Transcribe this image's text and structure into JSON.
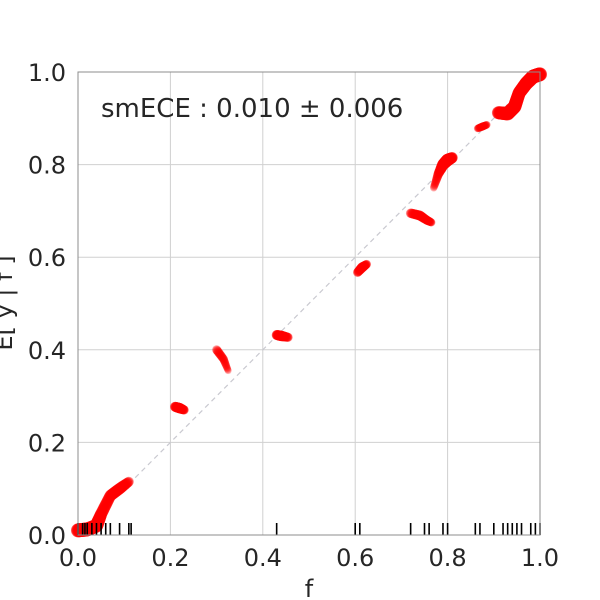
{
  "chart_data": {
    "type": "line",
    "title": "",
    "annotation": "smECE : 0.010 ± 0.006",
    "xlabel": "f",
    "ylabel": "E[ y | f ]",
    "xlim": [
      0.0,
      1.0
    ],
    "ylim": [
      0.0,
      1.0
    ],
    "x_ticks": [
      "0.0",
      "0.2",
      "0.4",
      "0.6",
      "0.8",
      "1.0"
    ],
    "y_ticks": [
      "0.0",
      "0.2",
      "0.4",
      "0.6",
      "0.8",
      "1.0"
    ],
    "grid": true,
    "diagonal_reference": {
      "x": [
        0.0,
        1.0
      ],
      "y": [
        0.0,
        1.0
      ],
      "color": "#c9c9d0",
      "style": "dashed"
    },
    "series": [
      {
        "color": "#ff0000",
        "segments": [
          {
            "x": [
              0.0,
              0.02,
              0.04,
              0.05,
              0.07,
              0.09,
              0.11
            ],
            "y": [
              0.01,
              0.012,
              0.02,
              0.045,
              0.085,
              0.1,
              0.115
            ],
            "density": [
              1.0,
              1.0,
              0.95,
              0.8,
              0.75,
              0.75,
              0.6
            ]
          },
          {
            "x": [
              0.21,
              0.22,
              0.23
            ],
            "y": [
              0.277,
              0.274,
              0.27
            ],
            "density": [
              0.6,
              0.65,
              0.5
            ]
          },
          {
            "x": [
              0.3,
              0.315,
              0.325
            ],
            "y": [
              0.4,
              0.38,
              0.355
            ],
            "density": [
              0.5,
              0.45,
              0.3
            ]
          },
          {
            "x": [
              0.43,
              0.44,
              0.455
            ],
            "y": [
              0.432,
              0.43,
              0.427
            ],
            "density": [
              0.6,
              0.65,
              0.5
            ]
          },
          {
            "x": [
              0.605,
              0.615,
              0.625
            ],
            "y": [
              0.567,
              0.578,
              0.585
            ],
            "density": [
              0.5,
              0.6,
              0.45
            ]
          },
          {
            "x": [
              0.72,
              0.74,
              0.755,
              0.765
            ],
            "y": [
              0.695,
              0.69,
              0.68,
              0.675
            ],
            "density": [
              0.55,
              0.6,
              0.5,
              0.4
            ]
          },
          {
            "x": [
              0.77,
              0.78,
              0.79,
              0.8,
              0.81
            ],
            "y": [
              0.75,
              0.78,
              0.8,
              0.81,
              0.815
            ],
            "density": [
              0.35,
              0.55,
              0.75,
              0.85,
              0.7
            ]
          },
          {
            "x": [
              0.865,
              0.875,
              0.885
            ],
            "y": [
              0.878,
              0.882,
              0.886
            ],
            "density": [
              0.35,
              0.4,
              0.35
            ]
          },
          {
            "x": [
              0.91,
              0.93,
              0.945,
              0.955,
              0.97,
              0.985,
              1.0
            ],
            "y": [
              0.912,
              0.91,
              0.925,
              0.955,
              0.975,
              0.99,
              0.995
            ],
            "density": [
              0.9,
              0.95,
              0.95,
              0.9,
              0.95,
              1.0,
              1.0
            ]
          }
        ]
      }
    ],
    "rug_ticks": [
      0.0,
      0.01,
      0.015,
      0.02,
      0.03,
      0.04,
      0.05,
      0.06,
      0.07,
      0.09,
      0.11,
      0.115,
      0.43,
      0.6,
      0.61,
      0.72,
      0.75,
      0.76,
      0.79,
      0.8,
      0.86,
      0.87,
      0.9,
      0.92,
      0.93,
      0.94,
      0.95,
      0.96,
      0.98,
      0.99,
      1.0
    ]
  }
}
